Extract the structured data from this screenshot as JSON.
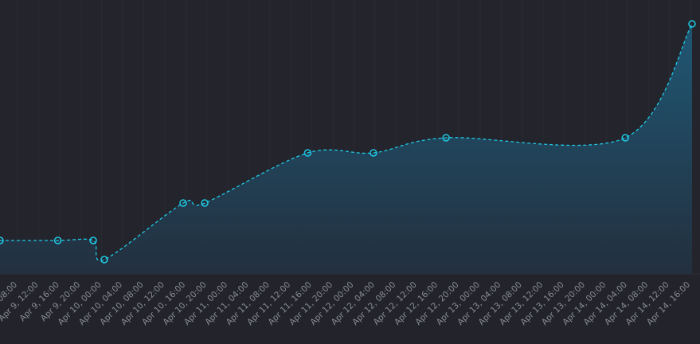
{
  "chart_data": {
    "type": "area",
    "x": [
      "Apr 9, 04:40",
      "Apr 9, 15:40",
      "Apr 9, 22:24",
      "Apr 10, 00:30",
      "Apr 10, 15:30",
      "Apr 10, 19:36",
      "Apr 11, 15:12",
      "Apr 12, 03:42",
      "Apr 12, 17:30",
      "Apr 14, 03:36",
      "Apr 14, 16:18"
    ],
    "series": [
      {
        "color": "#1fc8e3",
        "values": [
          42,
          42,
          42,
          18,
          89,
          89,
          152,
          152,
          171,
          171,
          314
        ]
      }
    ],
    "xlim": [
      "Apr 9, 04:40",
      "Apr 14, 16:18"
    ],
    "xticks": [
      "Apr 9, 08:00",
      "Apr 9, 12:00",
      "Apr 9, 16:00",
      "Apr 9, 20:00",
      "Apr 10, 00:00",
      "Apr 10, 04:00",
      "Apr 10, 08:00",
      "Apr 10, 12:00",
      "Apr 10, 16:00",
      "Apr 10, 20:00",
      "Apr 11, 00:00",
      "Apr 11, 04:00",
      "Apr 11, 08:00",
      "Apr 11, 12:00",
      "Apr 11, 16:00",
      "Apr 11, 20:00",
      "Apr 12, 00:00",
      "Apr 12, 04:00",
      "Apr 12, 08:00",
      "Apr 12, 12:00",
      "Apr 12, 16:00",
      "Apr 12, 20:00",
      "Apr 13, 00:00",
      "Apr 13, 04:00",
      "Apr 13, 08:00",
      "Apr 13, 12:00",
      "Apr 13, 16:00",
      "Apr 13, 20:00",
      "Apr 14, 00:00",
      "Apr 14, 04:00",
      "Apr 14, 08:00",
      "Apr 14, 12:00",
      "Apr 14, 16:00"
    ],
    "ylim": [
      0,
      334
    ],
    "grid": true
  }
}
